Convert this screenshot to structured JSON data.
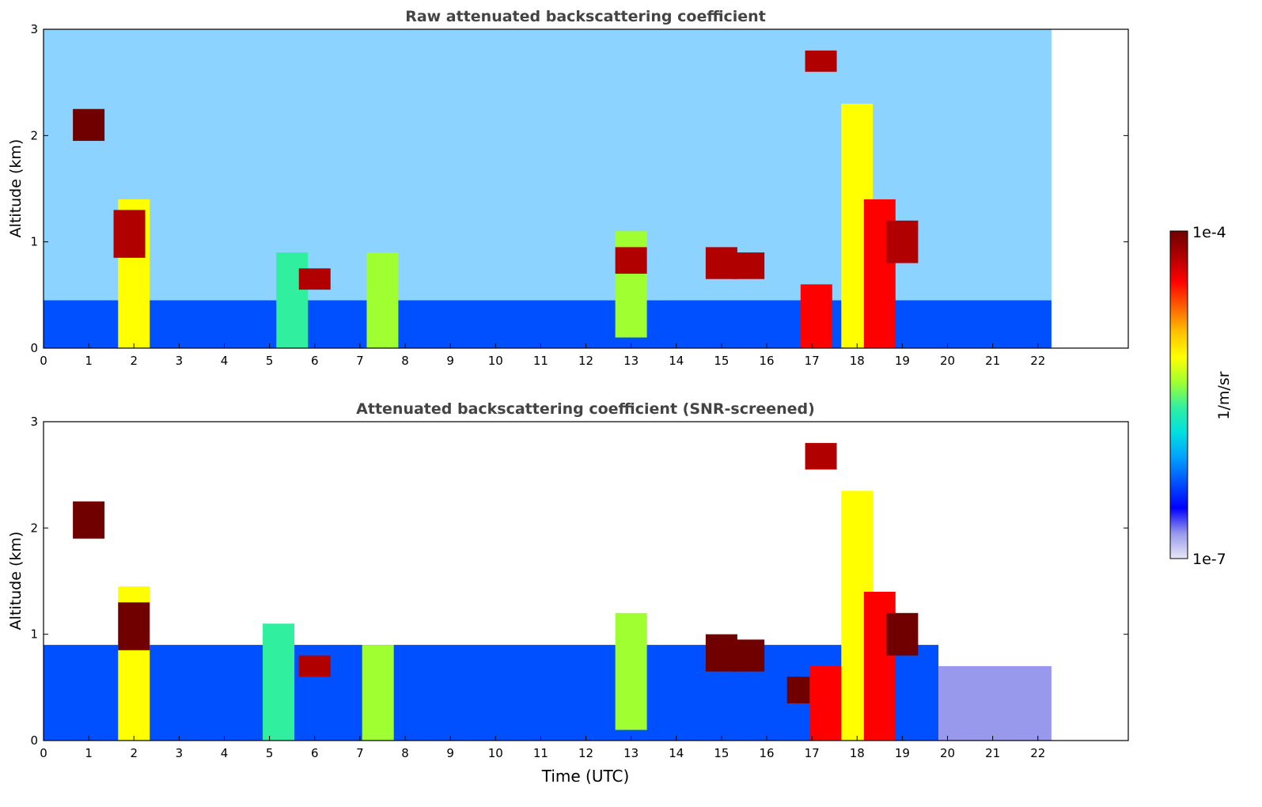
{
  "chart_data": [
    {
      "type": "heatmap",
      "title": "Raw attenuated backscattering coefficient",
      "xlabel": "",
      "ylabel": "Altitude (km)",
      "xlim": [
        0,
        24
      ],
      "ylim": [
        0,
        3
      ],
      "x_ticks": [
        "0",
        "1",
        "2",
        "3",
        "4",
        "5",
        "6",
        "7",
        "8",
        "9",
        "10",
        "11",
        "12",
        "13",
        "14",
        "15",
        "16",
        "17",
        "18",
        "19",
        "20",
        "21",
        "22"
      ],
      "y_ticks": [
        "0",
        "1",
        "2",
        "3"
      ],
      "data_end_hour": 22.3,
      "layers": [
        {
          "name": "boundary layer",
          "t0": 0,
          "t1": 22.3,
          "alt_top": 0.45,
          "level": 0.22
        },
        {
          "name": "noise",
          "t0": 0,
          "t1": 22.3,
          "alt_bottom": 0.45,
          "alt_top": 3.0,
          "level": 0.28
        }
      ],
      "features": [
        {
          "t": 1.0,
          "alt_bottom": 1.95,
          "alt_top": 2.25,
          "level": 0.98
        },
        {
          "t": 2.0,
          "alt_bottom": 0.0,
          "alt_top": 1.4,
          "level": 0.6
        },
        {
          "t": 1.9,
          "alt_bottom": 0.85,
          "alt_top": 1.3,
          "level": 0.95
        },
        {
          "t": 5.5,
          "alt_bottom": 0.0,
          "alt_top": 0.9,
          "level": 0.45
        },
        {
          "t": 6.0,
          "alt_bottom": 0.55,
          "alt_top": 0.75,
          "level": 0.9
        },
        {
          "t": 7.5,
          "alt_bottom": 0.0,
          "alt_top": 0.9,
          "level": 0.5
        },
        {
          "t": 13.0,
          "alt_bottom": 0.1,
          "alt_top": 1.1,
          "level": 0.55
        },
        {
          "t": 13.0,
          "alt_bottom": 0.7,
          "alt_top": 0.95,
          "level": 0.95
        },
        {
          "t": 15.0,
          "alt_bottom": 0.65,
          "alt_top": 0.95,
          "level": 0.95
        },
        {
          "t": 15.6,
          "alt_bottom": 0.65,
          "alt_top": 0.9,
          "level": 0.95
        },
        {
          "t": 17.1,
          "alt_bottom": 0.0,
          "alt_top": 0.6,
          "level": 0.85
        },
        {
          "t": 17.2,
          "alt_bottom": 2.6,
          "alt_top": 2.8,
          "level": 0.95
        },
        {
          "t": 18.0,
          "alt_bottom": 0.0,
          "alt_top": 2.3,
          "level": 0.65
        },
        {
          "t": 18.5,
          "alt_bottom": 0.0,
          "alt_top": 1.4,
          "level": 0.85
        },
        {
          "t": 19.0,
          "alt_bottom": 0.8,
          "alt_top": 1.2,
          "level": 0.95
        }
      ]
    },
    {
      "type": "heatmap",
      "title": "Attenuated backscattering coefficient (SNR-screened)",
      "xlabel": "Time (UTC)",
      "ylabel": "Altitude (km)",
      "xlim": [
        0,
        24
      ],
      "ylim": [
        0,
        3
      ],
      "x_ticks": [
        "0",
        "1",
        "2",
        "3",
        "4",
        "5",
        "6",
        "7",
        "8",
        "9",
        "10",
        "11",
        "12",
        "13",
        "14",
        "15",
        "16",
        "17",
        "18",
        "19",
        "20",
        "21",
        "22"
      ],
      "y_ticks": [
        "0",
        "1",
        "2",
        "3"
      ],
      "data_end_hour": 22.3,
      "layers": [
        {
          "name": "boundary layer",
          "t0": 0,
          "t1": 19.8,
          "alt_top": 0.9,
          "level": 0.2
        },
        {
          "name": "residual layer",
          "t0": 19.8,
          "t1": 22.3,
          "alt_top": 0.7,
          "level": 0.06
        }
      ],
      "features": [
        {
          "t": 1.0,
          "alt_bottom": 1.9,
          "alt_top": 2.25,
          "level": 1.0
        },
        {
          "t": 2.0,
          "alt_bottom": 0.0,
          "alt_top": 1.45,
          "level": 0.6
        },
        {
          "t": 2.0,
          "alt_bottom": 0.85,
          "alt_top": 1.3,
          "level": 1.0
        },
        {
          "t": 5.2,
          "alt_bottom": 0.0,
          "alt_top": 1.1,
          "level": 0.45
        },
        {
          "t": 6.0,
          "alt_bottom": 0.6,
          "alt_top": 0.8,
          "level": 0.9
        },
        {
          "t": 7.4,
          "alt_bottom": 0.0,
          "alt_top": 0.9,
          "level": 0.5
        },
        {
          "t": 13.0,
          "alt_bottom": 0.1,
          "alt_top": 1.2,
          "level": 0.55
        },
        {
          "t": 15.0,
          "alt_bottom": 0.65,
          "alt_top": 1.0,
          "level": 1.0
        },
        {
          "t": 15.6,
          "alt_bottom": 0.65,
          "alt_top": 0.95,
          "level": 1.0
        },
        {
          "t": 16.8,
          "alt_bottom": 0.35,
          "alt_top": 0.6,
          "level": 1.0
        },
        {
          "t": 17.2,
          "alt_bottom": 2.55,
          "alt_top": 2.8,
          "level": 0.95
        },
        {
          "t": 17.3,
          "alt_bottom": 0.0,
          "alt_top": 0.7,
          "level": 0.85
        },
        {
          "t": 18.0,
          "alt_bottom": 0.0,
          "alt_top": 2.35,
          "level": 0.65
        },
        {
          "t": 18.5,
          "alt_bottom": 0.0,
          "alt_top": 1.4,
          "level": 0.85
        },
        {
          "t": 19.0,
          "alt_bottom": 0.8,
          "alt_top": 1.2,
          "level": 1.0
        }
      ]
    }
  ],
  "colorbar": {
    "label": "1/m/sr",
    "max_label": "1e-4",
    "min_label": "1e-7",
    "colors": [
      "#e8e8f8",
      "#9898ec",
      "#0000ff",
      "#0050ff",
      "#00a0ff",
      "#00e0e0",
      "#30f0a0",
      "#a0ff30",
      "#ffff00",
      "#ffc000",
      "#ff6000",
      "#ff0000",
      "#b00000",
      "#700000"
    ]
  }
}
